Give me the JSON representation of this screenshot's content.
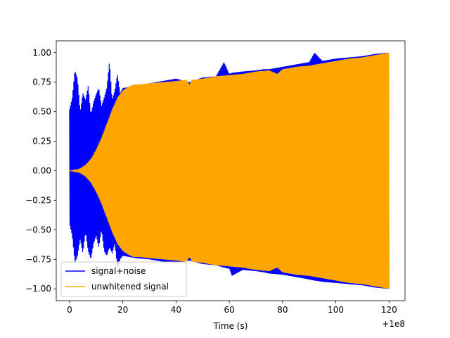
{
  "chart_data": {
    "type": "line",
    "title": "",
    "xlabel": "Time (s)",
    "ylabel": "",
    "x_offset_label": "+1e8",
    "xlim": [
      -5,
      126
    ],
    "ylim": [
      -1.1,
      1.1
    ],
    "x_ticks": [
      0,
      20,
      40,
      60,
      80,
      100,
      120
    ],
    "x_tick_labels": [
      "0",
      "20",
      "40",
      "60",
      "80",
      "100",
      "120"
    ],
    "y_ticks": [
      -1.0,
      -0.75,
      -0.5,
      -0.25,
      0.0,
      0.25,
      0.5,
      0.75,
      1.0
    ],
    "y_tick_labels": [
      "−1.00",
      "−0.75",
      "−0.50",
      "−0.25",
      "0.00",
      "0.25",
      "0.50",
      "0.75",
      "1.00"
    ],
    "grid": false,
    "legend_position": "lower-left",
    "series": [
      {
        "name": "signal+noise",
        "color": "#0000ff",
        "envelope": {
          "x": [
            0,
            1,
            2,
            3,
            4,
            5,
            6,
            7,
            8,
            9,
            10,
            11,
            12,
            13,
            14,
            15,
            16,
            17,
            18,
            19,
            20,
            25,
            30,
            35,
            40,
            45,
            50,
            55,
            58,
            60,
            61,
            65,
            70,
            73,
            75,
            80,
            85,
            90,
            92,
            95,
            100,
            105,
            110,
            115,
            120
          ],
          "upper": [
            0.52,
            0.62,
            0.85,
            0.78,
            0.5,
            0.66,
            0.6,
            0.72,
            0.48,
            0.58,
            0.65,
            0.7,
            0.55,
            0.62,
            0.7,
            0.93,
            0.6,
            0.68,
            0.82,
            0.66,
            0.7,
            0.72,
            0.74,
            0.76,
            0.78,
            0.75,
            0.79,
            0.8,
            0.92,
            0.82,
            0.83,
            0.84,
            0.85,
            0.86,
            0.86,
            0.88,
            0.9,
            0.92,
            1.0,
            0.93,
            0.95,
            0.96,
            0.97,
            0.99,
            1.0
          ],
          "lower": [
            -0.45,
            -0.55,
            -0.78,
            -0.72,
            -0.58,
            -0.7,
            -0.52,
            -0.68,
            -0.75,
            -0.62,
            -0.55,
            -0.65,
            -0.5,
            -0.68,
            -0.72,
            -0.65,
            -0.7,
            -0.62,
            -0.83,
            -0.75,
            -0.72,
            -0.74,
            -0.75,
            -0.77,
            -0.78,
            -0.76,
            -0.79,
            -0.8,
            -0.82,
            -0.83,
            -0.89,
            -0.84,
            -0.85,
            -0.86,
            -0.87,
            -0.88,
            -0.9,
            -0.92,
            -0.93,
            -0.94,
            -0.95,
            -0.96,
            -0.97,
            -0.99,
            -1.0
          ]
        }
      },
      {
        "name": "unwhitened signal",
        "color": "#ffa500",
        "envelope": {
          "x": [
            0,
            2,
            4,
            6,
            8,
            10,
            12,
            14,
            16,
            18,
            20,
            22,
            24,
            26,
            30,
            35,
            40,
            44,
            45,
            46,
            50,
            55,
            60,
            65,
            70,
            75,
            78,
            80,
            85,
            90,
            95,
            100,
            105,
            110,
            115,
            120
          ],
          "upper": [
            0.0,
            0.005,
            0.02,
            0.05,
            0.1,
            0.18,
            0.28,
            0.4,
            0.52,
            0.62,
            0.68,
            0.71,
            0.73,
            0.73,
            0.74,
            0.75,
            0.76,
            0.77,
            0.73,
            0.77,
            0.78,
            0.8,
            0.81,
            0.82,
            0.84,
            0.85,
            0.82,
            0.86,
            0.88,
            0.89,
            0.91,
            0.93,
            0.95,
            0.96,
            0.98,
            1.0
          ],
          "lower": [
            0.0,
            -0.005,
            -0.02,
            -0.05,
            -0.1,
            -0.18,
            -0.28,
            -0.4,
            -0.52,
            -0.62,
            -0.68,
            -0.71,
            -0.73,
            -0.73,
            -0.74,
            -0.75,
            -0.76,
            -0.77,
            -0.73,
            -0.77,
            -0.78,
            -0.8,
            -0.81,
            -0.82,
            -0.84,
            -0.85,
            -0.82,
            -0.86,
            -0.88,
            -0.89,
            -0.91,
            -0.93,
            -0.95,
            -0.96,
            -0.98,
            -1.0
          ]
        }
      }
    ]
  }
}
